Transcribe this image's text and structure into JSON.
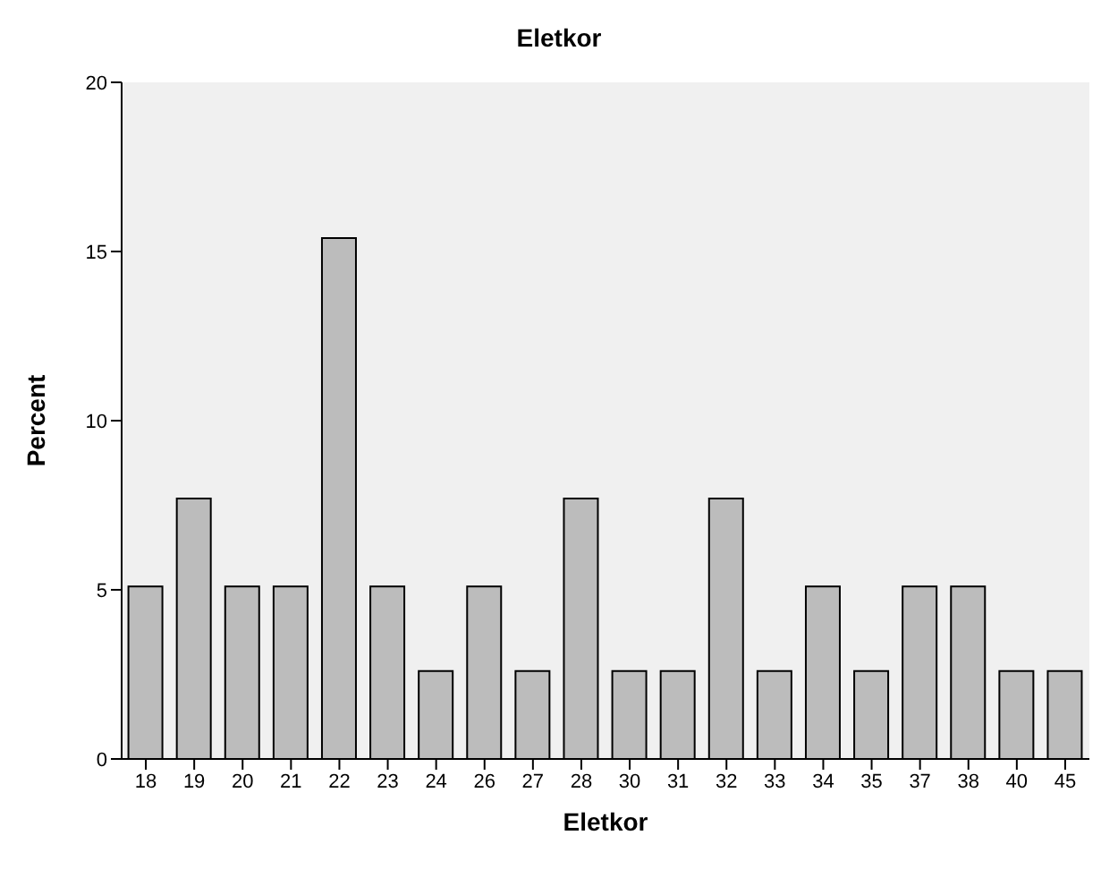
{
  "chart_data": {
    "type": "bar",
    "title": "Eletkor",
    "xlabel": "Eletkor",
    "ylabel": "Percent",
    "categories": [
      "18",
      "19",
      "20",
      "21",
      "22",
      "23",
      "24",
      "26",
      "27",
      "28",
      "30",
      "31",
      "32",
      "33",
      "34",
      "35",
      "37",
      "38",
      "40",
      "45"
    ],
    "values": [
      5.1,
      7.7,
      5.1,
      5.1,
      15.4,
      5.1,
      2.6,
      5.1,
      2.6,
      7.7,
      2.6,
      2.6,
      7.7,
      2.6,
      5.1,
      2.6,
      5.1,
      5.1,
      2.6,
      2.6
    ],
    "color": "#bcbcbc",
    "ylim": [
      0,
      20
    ],
    "yticks": [
      0,
      5,
      10,
      15,
      20
    ],
    "grid": false,
    "legend": false
  }
}
